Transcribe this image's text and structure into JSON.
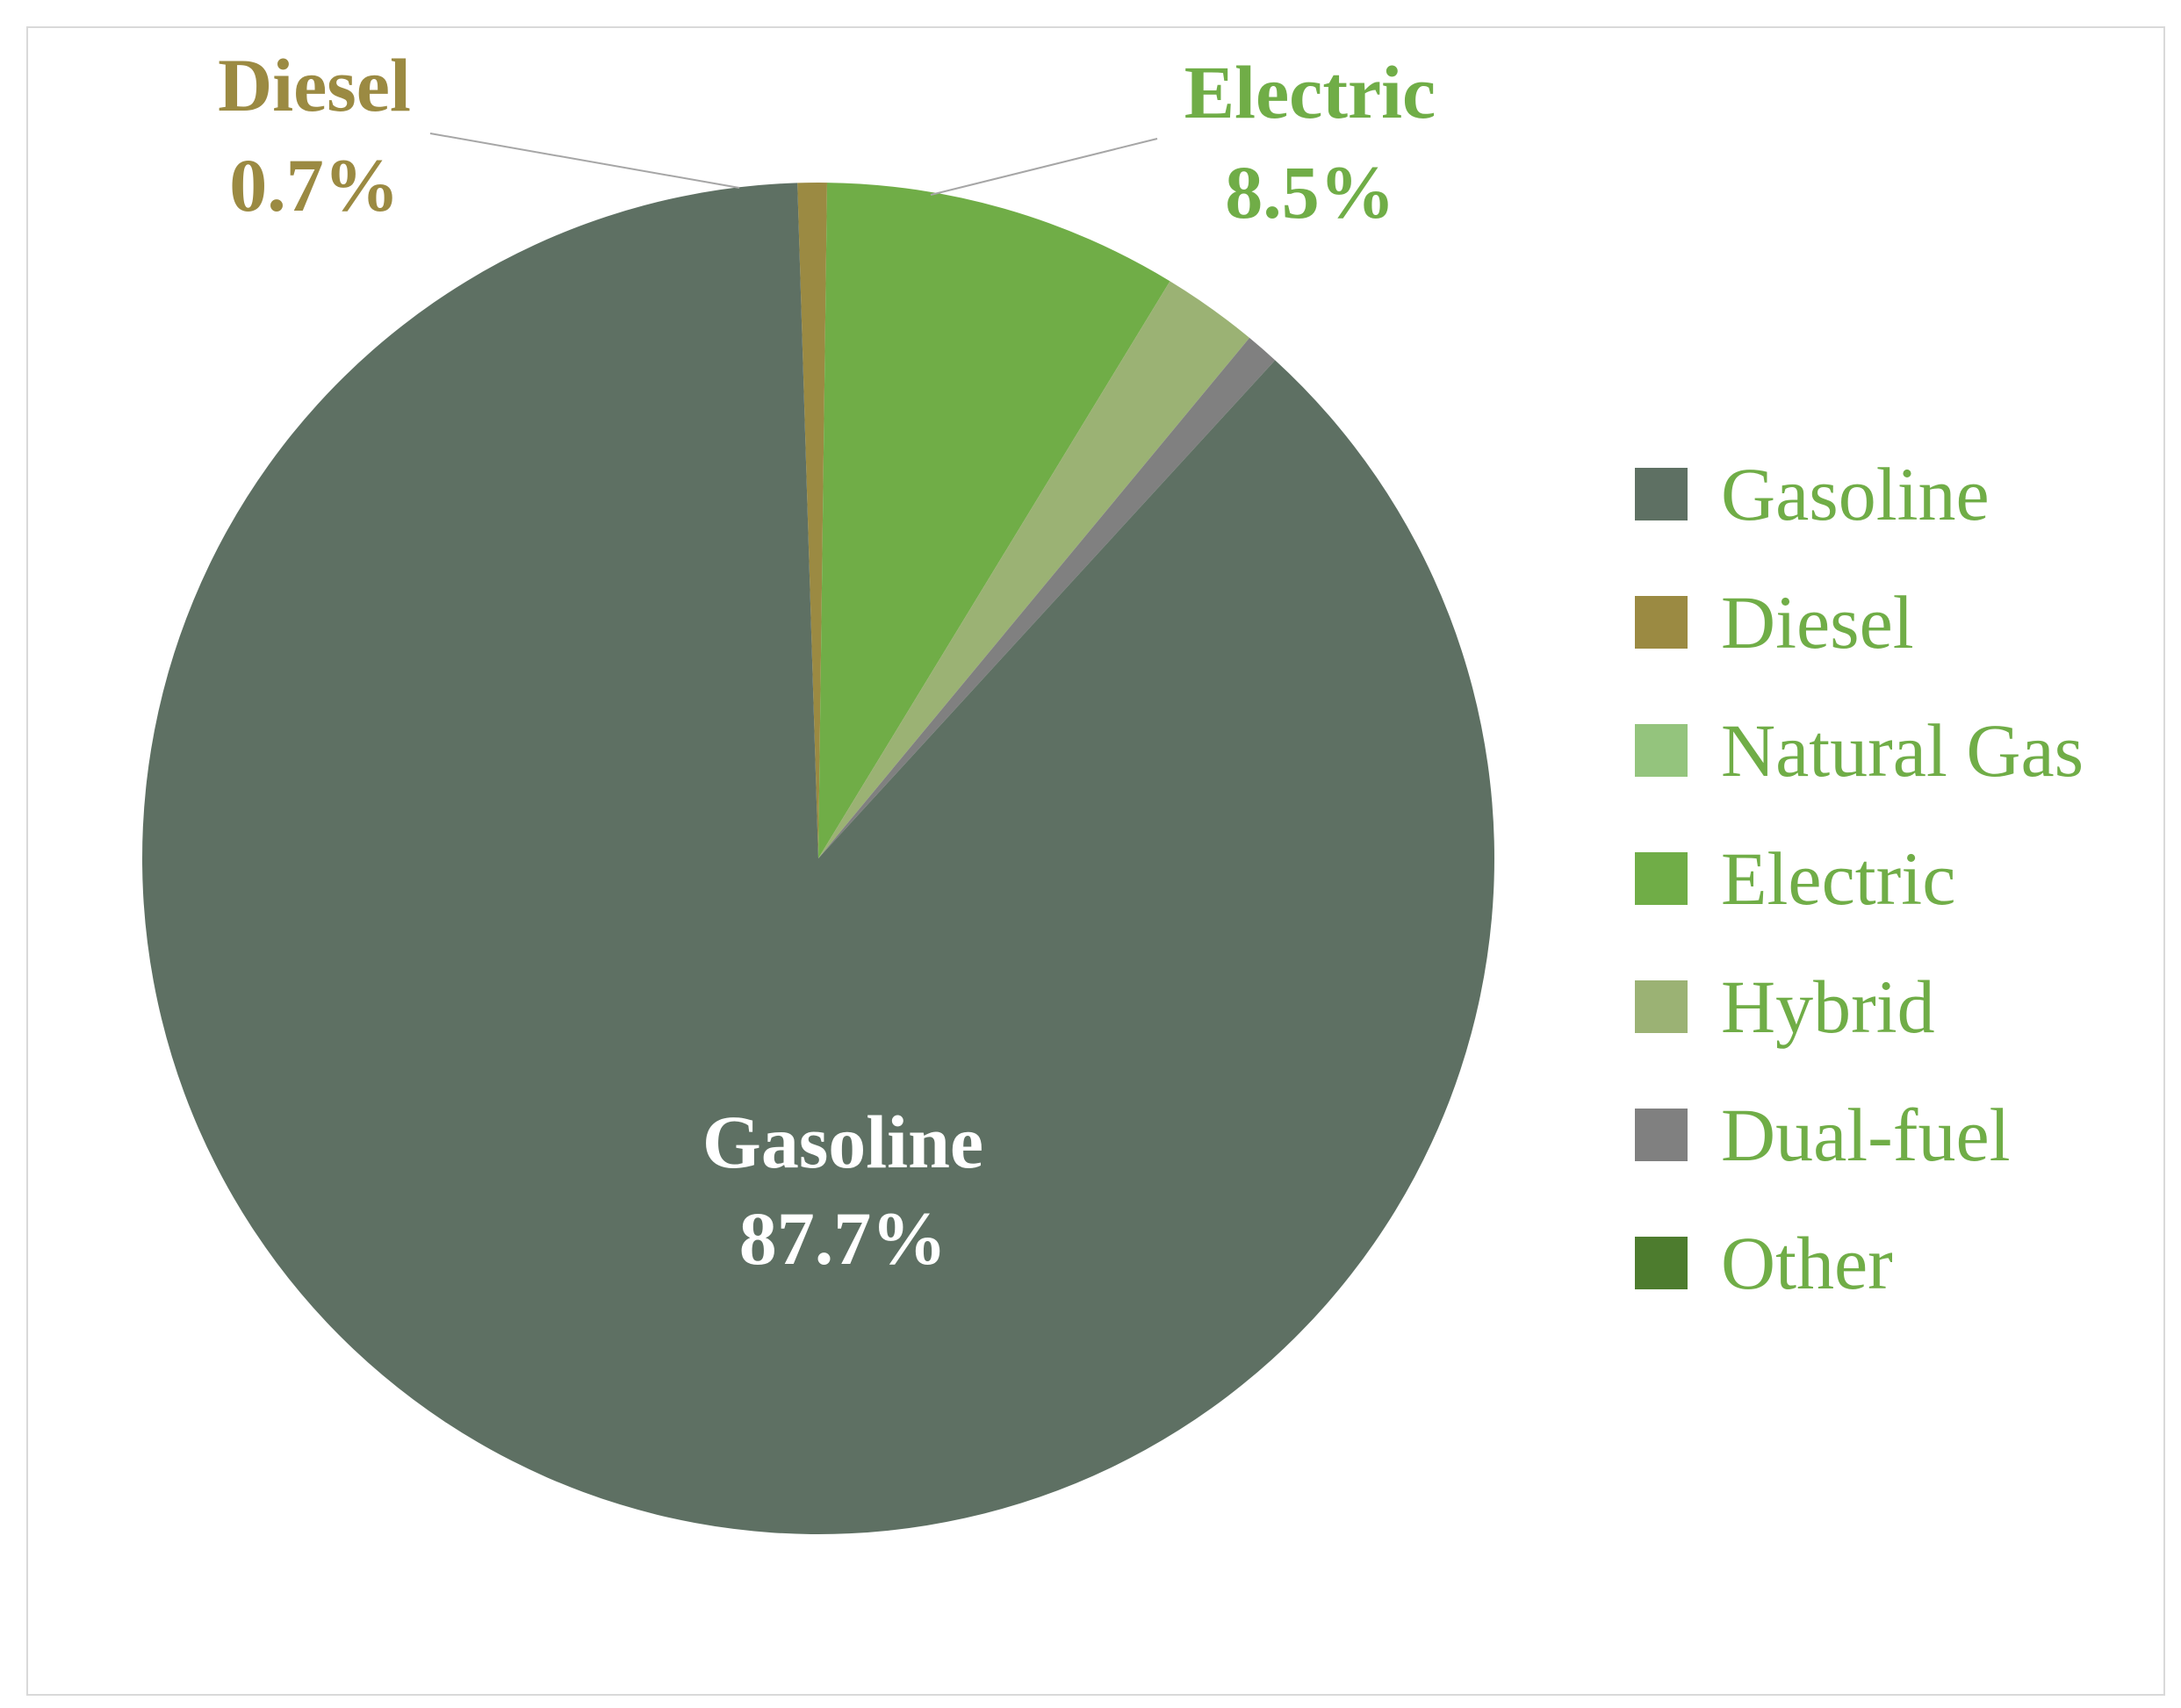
{
  "chart_data": {
    "type": "pie",
    "title": "",
    "slices": [
      {
        "label": "Gasoline",
        "value": 87.7,
        "color": "#5e7063"
      },
      {
        "label": "Diesel",
        "value": 0.7,
        "color": "#9b8a42"
      },
      {
        "label": "Natural Gas",
        "value": 0.0,
        "color": "#94c47d"
      },
      {
        "label": "Electric",
        "value": 8.5,
        "color": "#70ad47"
      },
      {
        "label": "Hybrid",
        "value": 2.3,
        "color": "#9bb274"
      },
      {
        "label": "Dual-fuel",
        "value": 0.8,
        "color": "#808080"
      },
      {
        "label": "Other",
        "value": 0.0,
        "color": "#4d7c2e"
      }
    ],
    "data_labels": {
      "gasoline": {
        "name": "Gasoline",
        "percent": "87.7%"
      },
      "diesel": {
        "name": "Diesel",
        "percent": "0.7%"
      },
      "electric": {
        "name": "Electric",
        "percent": "8.5%"
      }
    },
    "legend": {
      "position": "right",
      "items": [
        "Gasoline",
        "Diesel",
        "Natural Gas",
        "Electric",
        "Hybrid",
        "Dual-fuel",
        "Other"
      ]
    }
  }
}
